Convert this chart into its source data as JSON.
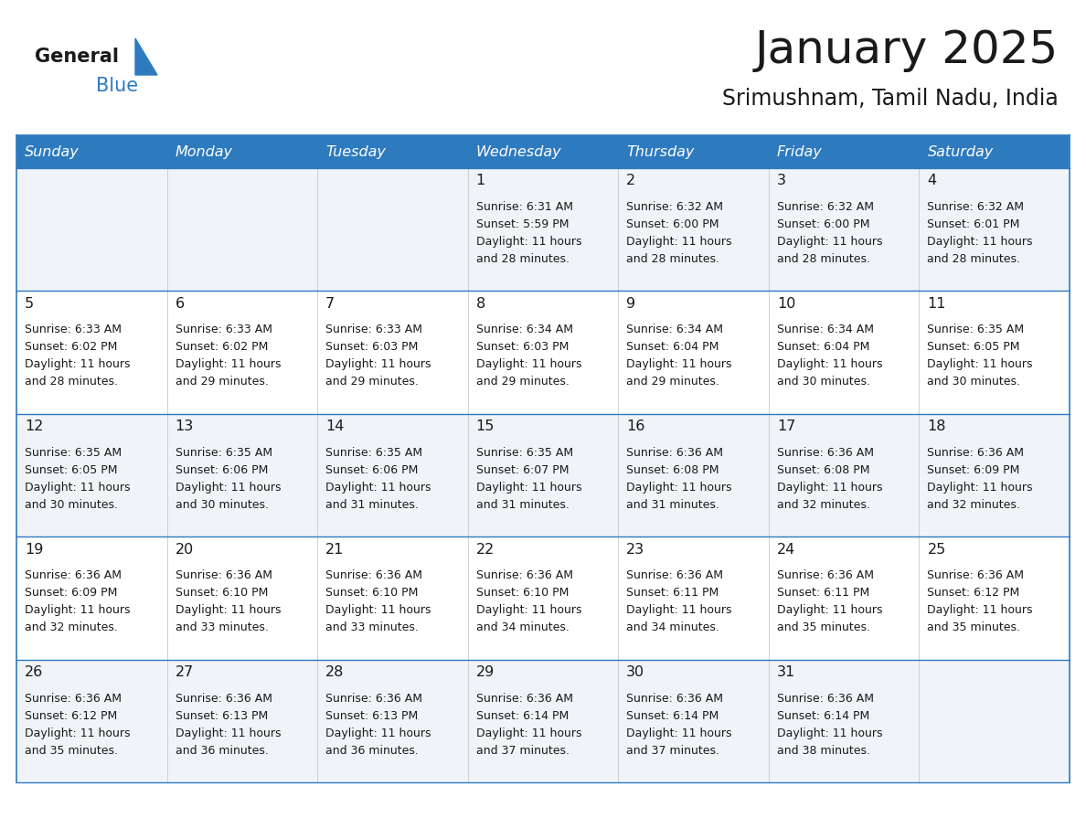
{
  "title": "January 2025",
  "subtitle": "Srimushnam, Tamil Nadu, India",
  "header_bg": "#2e7abf",
  "header_text": "#ffffff",
  "row_bg_odd": "#f0f4f8",
  "row_bg_even": "#ffffff",
  "line_color": "#2e7abf",
  "text_color": "#1a1a1a",
  "days": [
    "Sunday",
    "Monday",
    "Tuesday",
    "Wednesday",
    "Thursday",
    "Friday",
    "Saturday"
  ],
  "calendar": [
    [
      {
        "day": "",
        "text": ""
      },
      {
        "day": "",
        "text": ""
      },
      {
        "day": "",
        "text": ""
      },
      {
        "day": "1",
        "text": "Sunrise: 6:31 AM\nSunset: 5:59 PM\nDaylight: 11 hours\nand 28 minutes."
      },
      {
        "day": "2",
        "text": "Sunrise: 6:32 AM\nSunset: 6:00 PM\nDaylight: 11 hours\nand 28 minutes."
      },
      {
        "day": "3",
        "text": "Sunrise: 6:32 AM\nSunset: 6:00 PM\nDaylight: 11 hours\nand 28 minutes."
      },
      {
        "day": "4",
        "text": "Sunrise: 6:32 AM\nSunset: 6:01 PM\nDaylight: 11 hours\nand 28 minutes."
      }
    ],
    [
      {
        "day": "5",
        "text": "Sunrise: 6:33 AM\nSunset: 6:02 PM\nDaylight: 11 hours\nand 28 minutes."
      },
      {
        "day": "6",
        "text": "Sunrise: 6:33 AM\nSunset: 6:02 PM\nDaylight: 11 hours\nand 29 minutes."
      },
      {
        "day": "7",
        "text": "Sunrise: 6:33 AM\nSunset: 6:03 PM\nDaylight: 11 hours\nand 29 minutes."
      },
      {
        "day": "8",
        "text": "Sunrise: 6:34 AM\nSunset: 6:03 PM\nDaylight: 11 hours\nand 29 minutes."
      },
      {
        "day": "9",
        "text": "Sunrise: 6:34 AM\nSunset: 6:04 PM\nDaylight: 11 hours\nand 29 minutes."
      },
      {
        "day": "10",
        "text": "Sunrise: 6:34 AM\nSunset: 6:04 PM\nDaylight: 11 hours\nand 30 minutes."
      },
      {
        "day": "11",
        "text": "Sunrise: 6:35 AM\nSunset: 6:05 PM\nDaylight: 11 hours\nand 30 minutes."
      }
    ],
    [
      {
        "day": "12",
        "text": "Sunrise: 6:35 AM\nSunset: 6:05 PM\nDaylight: 11 hours\nand 30 minutes."
      },
      {
        "day": "13",
        "text": "Sunrise: 6:35 AM\nSunset: 6:06 PM\nDaylight: 11 hours\nand 30 minutes."
      },
      {
        "day": "14",
        "text": "Sunrise: 6:35 AM\nSunset: 6:06 PM\nDaylight: 11 hours\nand 31 minutes."
      },
      {
        "day": "15",
        "text": "Sunrise: 6:35 AM\nSunset: 6:07 PM\nDaylight: 11 hours\nand 31 minutes."
      },
      {
        "day": "16",
        "text": "Sunrise: 6:36 AM\nSunset: 6:08 PM\nDaylight: 11 hours\nand 31 minutes."
      },
      {
        "day": "17",
        "text": "Sunrise: 6:36 AM\nSunset: 6:08 PM\nDaylight: 11 hours\nand 32 minutes."
      },
      {
        "day": "18",
        "text": "Sunrise: 6:36 AM\nSunset: 6:09 PM\nDaylight: 11 hours\nand 32 minutes."
      }
    ],
    [
      {
        "day": "19",
        "text": "Sunrise: 6:36 AM\nSunset: 6:09 PM\nDaylight: 11 hours\nand 32 minutes."
      },
      {
        "day": "20",
        "text": "Sunrise: 6:36 AM\nSunset: 6:10 PM\nDaylight: 11 hours\nand 33 minutes."
      },
      {
        "day": "21",
        "text": "Sunrise: 6:36 AM\nSunset: 6:10 PM\nDaylight: 11 hours\nand 33 minutes."
      },
      {
        "day": "22",
        "text": "Sunrise: 6:36 AM\nSunset: 6:10 PM\nDaylight: 11 hours\nand 34 minutes."
      },
      {
        "day": "23",
        "text": "Sunrise: 6:36 AM\nSunset: 6:11 PM\nDaylight: 11 hours\nand 34 minutes."
      },
      {
        "day": "24",
        "text": "Sunrise: 6:36 AM\nSunset: 6:11 PM\nDaylight: 11 hours\nand 35 minutes."
      },
      {
        "day": "25",
        "text": "Sunrise: 6:36 AM\nSunset: 6:12 PM\nDaylight: 11 hours\nand 35 minutes."
      }
    ],
    [
      {
        "day": "26",
        "text": "Sunrise: 6:36 AM\nSunset: 6:12 PM\nDaylight: 11 hours\nand 35 minutes."
      },
      {
        "day": "27",
        "text": "Sunrise: 6:36 AM\nSunset: 6:13 PM\nDaylight: 11 hours\nand 36 minutes."
      },
      {
        "day": "28",
        "text": "Sunrise: 6:36 AM\nSunset: 6:13 PM\nDaylight: 11 hours\nand 36 minutes."
      },
      {
        "day": "29",
        "text": "Sunrise: 6:36 AM\nSunset: 6:14 PM\nDaylight: 11 hours\nand 37 minutes."
      },
      {
        "day": "30",
        "text": "Sunrise: 6:36 AM\nSunset: 6:14 PM\nDaylight: 11 hours\nand 37 minutes."
      },
      {
        "day": "31",
        "text": "Sunrise: 6:36 AM\nSunset: 6:14 PM\nDaylight: 11 hours\nand 38 minutes."
      },
      {
        "day": "",
        "text": ""
      }
    ]
  ],
  "fig_width": 11.88,
  "fig_height": 9.18,
  "dpi": 100
}
